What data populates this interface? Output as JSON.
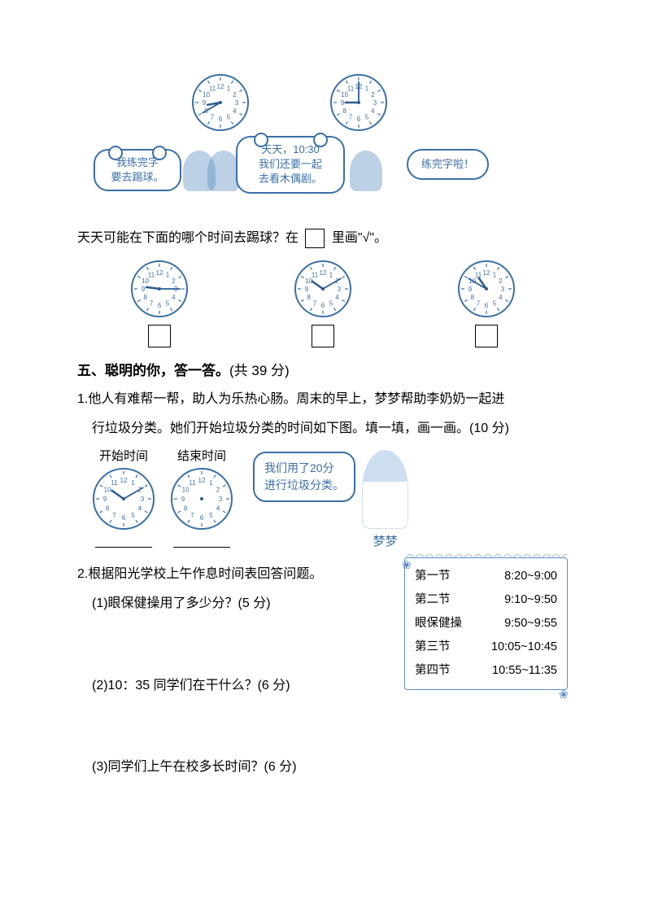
{
  "top": {
    "clock1": {
      "hour": 8,
      "minute": 40,
      "size": 72
    },
    "clock2": {
      "hour": 9,
      "minute": 0,
      "size": 72
    },
    "bubble_left": "我练完字\n要去踢球。",
    "bubble_mid": "天天，10:30\n我们还要一起\n去看木偶剧。",
    "bubble_right": "练完字啦！"
  },
  "top_question": "天天可能在下面的哪个时间去踢球？在",
  "top_question_suffix": "里画\"√\"。",
  "options": [
    {
      "hour": 9,
      "minute": 15,
      "size": 72
    },
    {
      "hour": 10,
      "minute": 10,
      "size": 72
    },
    {
      "hour": 10,
      "minute": 50,
      "size": 72
    }
  ],
  "section5": {
    "heading_bold": "五、聪明的你，答一答。",
    "heading_points": "(共 39 分)"
  },
  "q1": {
    "text_line1": "1.他人有难帮一帮，助人为乐热心肠。周末的早上，梦梦帮助李奶奶一起进",
    "text_line2": "行垃圾分类。她们开始垃圾分类的时间如下图。填一填，画一画。(10 分)",
    "start_label": "开始时间",
    "end_label": "结束时间",
    "start_clock": {
      "hour": 10,
      "minute": 10,
      "size": 78
    },
    "end_clock": {
      "hour": null,
      "minute": null,
      "size": 78
    },
    "speech": "我们用了20分\n进行垃圾分类。",
    "girl_name": "梦梦"
  },
  "q2": {
    "title": "2.根据阳光学校上午作息时间表回答问题。",
    "sub1": "(1)眼保健操用了多少分？(5 分)",
    "sub2": "(2)10：35 同学们在干什么？(6 分)",
    "sub3": "(3)同学们上午在校多长时间？(6 分)",
    "schedule": [
      {
        "name": "第一节",
        "time": "8:20~9:00"
      },
      {
        "name": "第二节",
        "time": "9:10~9:50"
      },
      {
        "name": "眼保健操",
        "time": "9:50~9:55"
      },
      {
        "name": "第三节",
        "time": "10:05~10:45"
      },
      {
        "name": "第四节",
        "time": "10:55~11:35"
      }
    ]
  },
  "clock_style": {
    "face_fill": "#ffffff",
    "stroke": "#3b6fa8",
    "tick": "#3b6fa8",
    "hand": "#2b5c90",
    "number_color": "#3b6fa8",
    "number_fontsize": 8
  }
}
